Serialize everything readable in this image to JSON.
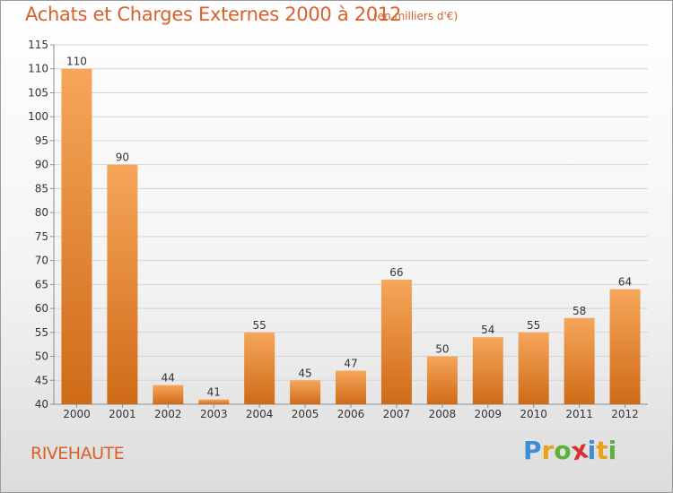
{
  "page": {
    "title": "Achats et Charges Externes 2000 à 2012",
    "unit": "(en milliers d'€)",
    "town": "RIVEHAUTE"
  },
  "logo": {
    "letters": [
      "P",
      "r",
      "o",
      "x",
      "i",
      "t",
      "i"
    ],
    "colors": [
      "#3a8fd6",
      "#e9a21a",
      "#5bb13a",
      "#d8312e",
      "#3a8fd6",
      "#e9a21a",
      "#5bb13a"
    ]
  },
  "colors": {
    "accent": "#d9602a",
    "bar_light": "#f6a65a",
    "bar_dark": "#cf6b17",
    "grid": "#d4d4d4",
    "axis": "#8c8c8c"
  },
  "chart_data": {
    "type": "bar",
    "title": "Achats et Charges Externes 2000 à 2012",
    "categories": [
      "2000",
      "2001",
      "2002",
      "2003",
      "2004",
      "2005",
      "2006",
      "2007",
      "2008",
      "2009",
      "2010",
      "2011",
      "2012"
    ],
    "values": [
      110,
      90,
      44,
      41,
      55,
      45,
      47,
      66,
      50,
      54,
      55,
      58,
      64
    ],
    "ylim": [
      40,
      115
    ],
    "yticks": [
      40,
      45,
      50,
      55,
      60,
      65,
      70,
      75,
      80,
      85,
      90,
      95,
      100,
      105,
      110,
      115
    ],
    "grid": true,
    "xlabel": "",
    "ylabel": ""
  }
}
